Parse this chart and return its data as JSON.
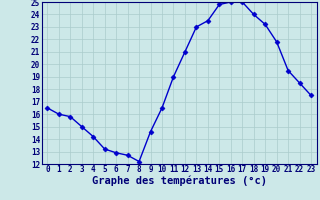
{
  "hours": [
    0,
    1,
    2,
    3,
    4,
    5,
    6,
    7,
    8,
    9,
    10,
    11,
    12,
    13,
    14,
    15,
    16,
    17,
    18,
    19,
    20,
    21,
    22,
    23
  ],
  "temperatures": [
    16.5,
    16.0,
    15.8,
    15.0,
    14.2,
    13.2,
    12.9,
    12.7,
    12.2,
    14.6,
    16.5,
    19.0,
    21.0,
    23.0,
    23.5,
    24.8,
    25.0,
    25.0,
    24.0,
    23.2,
    21.8,
    19.5,
    18.5,
    17.5
  ],
  "line_color": "#0000cc",
  "marker": "D",
  "marker_size": 2.5,
  "bg_color": "#cce8e8",
  "grid_color": "#aacccc",
  "xlabel": "Graphe des températures (°c)",
  "ylim": [
    12,
    25
  ],
  "xlim_min": -0.5,
  "xlim_max": 23.5,
  "yticks": [
    12,
    13,
    14,
    15,
    16,
    17,
    18,
    19,
    20,
    21,
    22,
    23,
    24,
    25
  ],
  "xticks": [
    0,
    1,
    2,
    3,
    4,
    5,
    6,
    7,
    8,
    9,
    10,
    11,
    12,
    13,
    14,
    15,
    16,
    17,
    18,
    19,
    20,
    21,
    22,
    23
  ],
  "tick_label_color": "#000077",
  "axis_color": "#000077",
  "label_fontsize": 7.5,
  "tick_fontsize": 5.5
}
